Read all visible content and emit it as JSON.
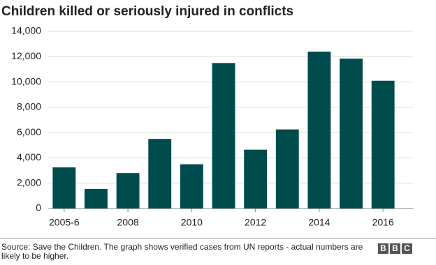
{
  "chart_data": {
    "type": "bar",
    "title": "Children killed or seriously injured in conflicts",
    "categories": [
      "2005-6",
      null,
      "2008",
      null,
      "2010",
      null,
      "2012",
      null,
      "2014",
      null,
      "2016"
    ],
    "values": [
      3250,
      1550,
      2800,
      5500,
      3500,
      11500,
      4650,
      6250,
      12400,
      11850,
      10100
    ],
    "color": "#004b4b",
    "ylim": [
      0,
      14000
    ],
    "yticks": [
      0,
      {
        "value": 2000,
        "label": "2,000"
      },
      {
        "value": 4000,
        "label": "4,000"
      },
      {
        "value": 6000,
        "label": "6,000"
      },
      {
        "value": 8000,
        "label": "8,000"
      },
      {
        "value": 10000,
        "label": "10,000"
      },
      {
        "value": 12000,
        "label": "12,000"
      },
      {
        "value": 14000,
        "label": "14,000"
      }
    ],
    "grid": true,
    "source": "Source: Save the Children. The graph shows verified cases from UN reports - actual numbers are likely to be higher."
  },
  "logo": [
    "B",
    "B",
    "C"
  ]
}
